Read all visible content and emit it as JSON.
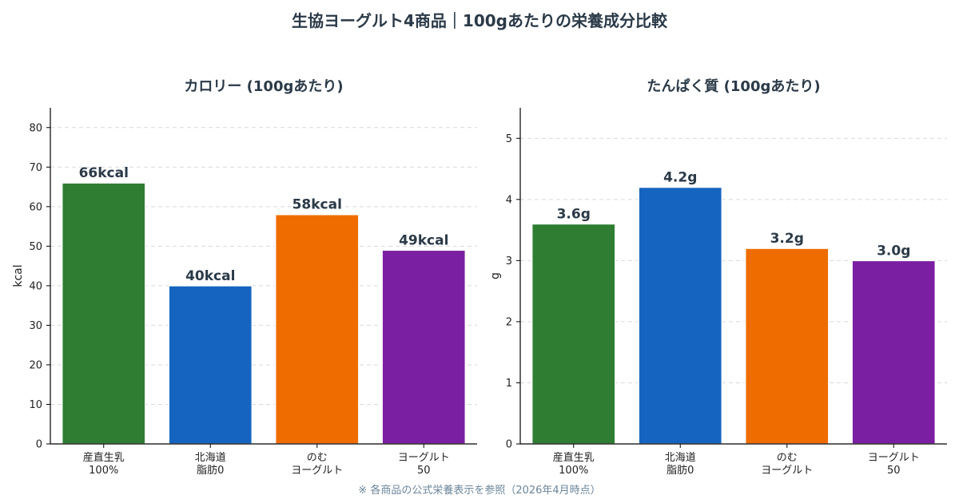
{
  "title": "生協ヨーグルト4商品｜100gあたりの栄養成分比較",
  "footnote": "※ 各商品の公式栄養表示を参照（2026年4月時点）",
  "chart_data": [
    {
      "type": "bar",
      "title": "カロリー (100gあたり)",
      "xlabel": "",
      "ylabel": "kcal",
      "ylim": [
        0,
        85
      ],
      "yticks": [
        0,
        10,
        20,
        30,
        40,
        50,
        60,
        70,
        80
      ],
      "grid": true,
      "categories": [
        [
          "産直生乳",
          "100%"
        ],
        [
          "北海道",
          "脂肪0"
        ],
        [
          "のむ",
          "ヨーグルト"
        ],
        [
          "ヨーグルト",
          "50"
        ]
      ],
      "values": [
        66,
        40,
        58,
        49
      ],
      "data_labels": [
        "66kcal",
        "40kcal",
        "58kcal",
        "49kcal"
      ],
      "colors": [
        "#2e7d32",
        "#1565c0",
        "#ef6c00",
        "#7b1fa2"
      ]
    },
    {
      "type": "bar",
      "title": "たんぱく質 (100gあたり)",
      "xlabel": "",
      "ylabel": "g",
      "ylim": [
        0,
        5.5
      ],
      "yticks": [
        0,
        1,
        2,
        3,
        4,
        5
      ],
      "grid": true,
      "categories": [
        [
          "産直生乳",
          "100%"
        ],
        [
          "北海道",
          "脂肪0"
        ],
        [
          "のむ",
          "ヨーグルト"
        ],
        [
          "ヨーグルト",
          "50"
        ]
      ],
      "values": [
        3.6,
        4.2,
        3.2,
        3.0
      ],
      "data_labels": [
        "3.6g",
        "4.2g",
        "3.2g",
        "3.0g"
      ],
      "colors": [
        "#2e7d32",
        "#1565c0",
        "#ef6c00",
        "#7b1fa2"
      ]
    }
  ]
}
